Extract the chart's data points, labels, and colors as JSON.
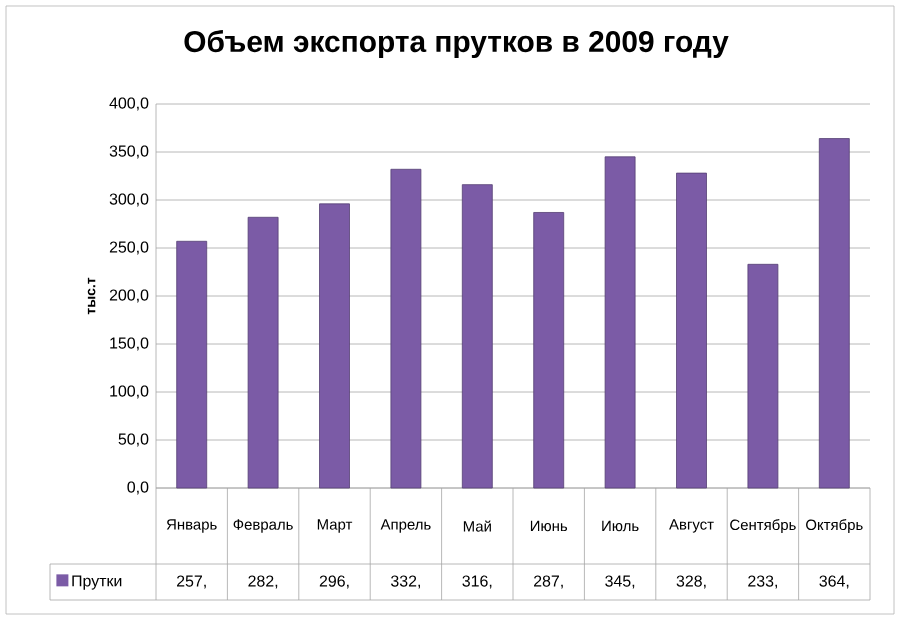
{
  "chart_data": {
    "type": "bar",
    "title": "Объем экспорта прутков в 2009 году",
    "ylabel": "тыс.т",
    "categories": [
      "Январь",
      "Февраль",
      "Март",
      "Апрель",
      "Май",
      "Июнь",
      "Июль",
      "Август",
      "Сентябрь",
      "Октябрь"
    ],
    "series": [
      {
        "name": "Прутки",
        "color": "#7b5ba6",
        "values": [
          257,
          282,
          296,
          332,
          316,
          287,
          345,
          328,
          233,
          364
        ],
        "value_labels": [
          "257,",
          "282,",
          "296,",
          "332,",
          "316,",
          "287,",
          "345,",
          "328,",
          "233,",
          "364,"
        ]
      }
    ],
    "ylim": [
      0,
      400
    ],
    "yticks": [
      {
        "value": 0,
        "label": "0,0"
      },
      {
        "value": 50,
        "label": "50,0"
      },
      {
        "value": 100,
        "label": "100,0"
      },
      {
        "value": 150,
        "label": "150,0"
      },
      {
        "value": 200,
        "label": "200,0"
      },
      {
        "value": 250,
        "label": "250,0"
      },
      {
        "value": 300,
        "label": "300,0"
      },
      {
        "value": 350,
        "label": "350,0"
      },
      {
        "value": 400,
        "label": "400,0"
      }
    ],
    "grid": "y",
    "legend": "bottom"
  }
}
